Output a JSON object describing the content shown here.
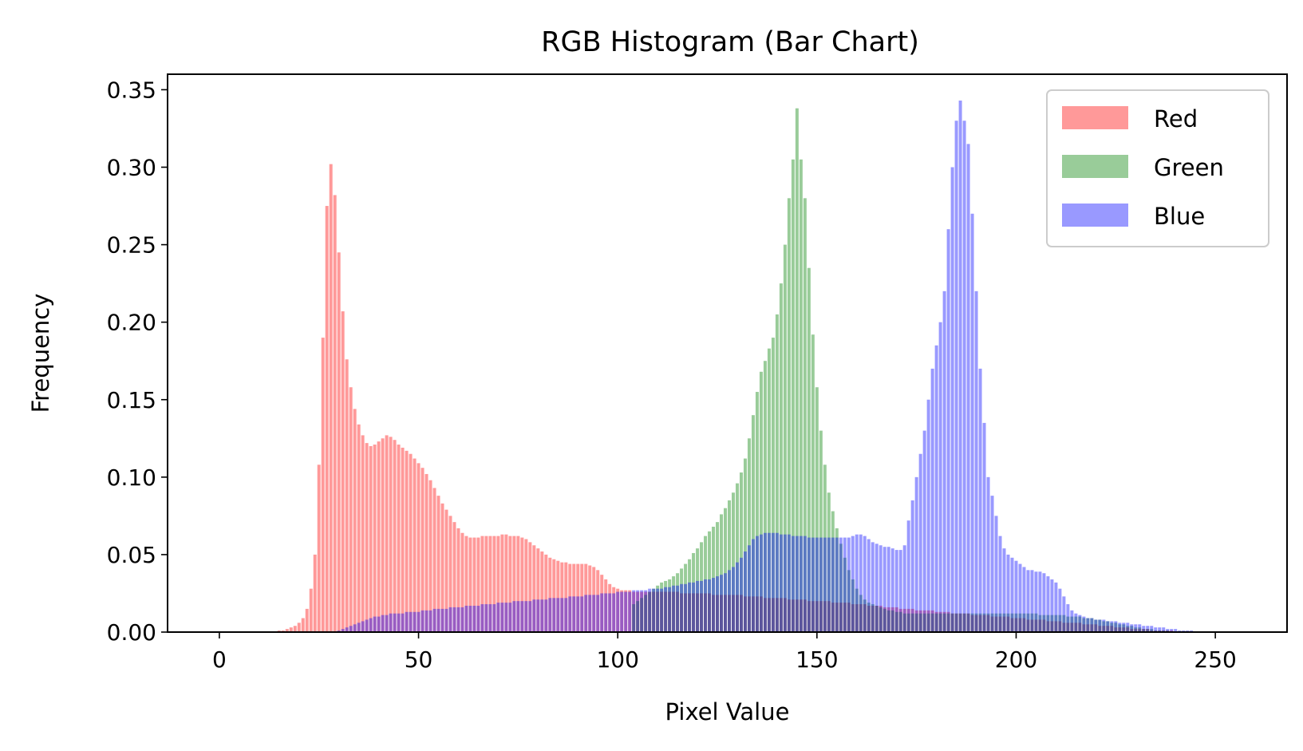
{
  "chart_data": {
    "type": "bar",
    "title": "RGB Histogram (Bar Chart)",
    "xlabel": "Pixel Value",
    "ylabel": "Frequency",
    "xlim": [
      -13,
      268
    ],
    "ylim": [
      0,
      0.36
    ],
    "xticks": [
      0,
      50,
      100,
      150,
      200,
      250
    ],
    "xtick_labels": [
      "0",
      "50",
      "100",
      "150",
      "200",
      "250"
    ],
    "yticks": [
      0,
      0.05,
      0.1,
      0.15,
      0.2,
      0.25,
      0.3,
      0.35
    ],
    "ytick_labels": [
      "0.00",
      "0.05",
      "0.10",
      "0.15",
      "0.20",
      "0.25",
      "0.30",
      "0.35"
    ],
    "grid": false,
    "legend_position": "top-right",
    "bins": "0-255",
    "series": [
      {
        "name": "Red",
        "color": "#ff0000",
        "alpha": 0.4,
        "values": [
          0,
          0,
          0,
          0,
          0,
          0,
          0,
          0,
          0,
          0,
          0,
          0,
          0,
          0,
          0,
          0.001,
          0.001,
          0.002,
          0.003,
          0.004,
          0.006,
          0.009,
          0.015,
          0.028,
          0.05,
          0.108,
          0.19,
          0.275,
          0.302,
          0.282,
          0.245,
          0.207,
          0.176,
          0.158,
          0.144,
          0.134,
          0.127,
          0.122,
          0.12,
          0.121,
          0.123,
          0.125,
          0.127,
          0.126,
          0.124,
          0.121,
          0.119,
          0.117,
          0.115,
          0.112,
          0.109,
          0.106,
          0.102,
          0.098,
          0.093,
          0.088,
          0.083,
          0.079,
          0.075,
          0.071,
          0.067,
          0.064,
          0.062,
          0.061,
          0.061,
          0.061,
          0.062,
          0.062,
          0.062,
          0.062,
          0.062,
          0.063,
          0.063,
          0.062,
          0.062,
          0.062,
          0.061,
          0.06,
          0.058,
          0.056,
          0.054,
          0.052,
          0.05,
          0.048,
          0.047,
          0.046,
          0.045,
          0.045,
          0.044,
          0.044,
          0.044,
          0.044,
          0.044,
          0.043,
          0.042,
          0.04,
          0.037,
          0.034,
          0.031,
          0.029,
          0.028,
          0.027,
          0.027,
          0.027,
          0.026,
          0.026,
          0.026,
          0.026,
          0.026,
          0.026,
          0.026,
          0.026,
          0.026,
          0.026,
          0.026,
          0.026,
          0.025,
          0.025,
          0.025,
          0.025,
          0.025,
          0.025,
          0.025,
          0.025,
          0.024,
          0.024,
          0.024,
          0.024,
          0.024,
          0.024,
          0.024,
          0.024,
          0.023,
          0.023,
          0.023,
          0.023,
          0.023,
          0.022,
          0.022,
          0.022,
          0.022,
          0.022,
          0.022,
          0.021,
          0.021,
          0.021,
          0.021,
          0.021,
          0.02,
          0.02,
          0.02,
          0.02,
          0.02,
          0.02,
          0.019,
          0.019,
          0.019,
          0.019,
          0.019,
          0.018,
          0.018,
          0.018,
          0.018,
          0.017,
          0.017,
          0.017,
          0.017,
          0.016,
          0.016,
          0.016,
          0.016,
          0.015,
          0.015,
          0.015,
          0.015,
          0.014,
          0.014,
          0.014,
          0.014,
          0.014,
          0.013,
          0.013,
          0.013,
          0.013,
          0.012,
          0.012,
          0.012,
          0.012,
          0.012,
          0.011,
          0.011,
          0.011,
          0.011,
          0.011,
          0.01,
          0.01,
          0.01,
          0.01,
          0.01,
          0.009,
          0.009,
          0.009,
          0.009,
          0.008,
          0.008,
          0.008,
          0.008,
          0.008,
          0.007,
          0.007,
          0.007,
          0.007,
          0.006,
          0.006,
          0.006,
          0.006,
          0.006,
          0.005,
          0.005,
          0.005,
          0.005,
          0.004,
          0.004,
          0.004,
          0.004,
          0.003,
          0.003,
          0.003,
          0.003,
          0.002,
          0.002,
          0.002,
          0.002,
          0.002,
          0.001,
          0.001,
          0.001,
          0.001,
          0.001,
          0.001,
          0,
          0,
          0,
          0,
          0,
          0,
          0,
          0,
          0,
          0,
          0,
          0,
          0,
          0,
          0
        ]
      },
      {
        "name": "Green",
        "color": "#008000",
        "alpha": 0.4,
        "values": [
          0,
          0,
          0,
          0,
          0,
          0,
          0,
          0,
          0,
          0,
          0,
          0,
          0,
          0,
          0,
          0,
          0,
          0,
          0,
          0,
          0,
          0,
          0,
          0,
          0,
          0,
          0,
          0,
          0,
          0,
          0,
          0,
          0,
          0,
          0,
          0,
          0,
          0,
          0,
          0,
          0,
          0,
          0,
          0,
          0,
          0,
          0,
          0,
          0,
          0,
          0,
          0,
          0,
          0,
          0,
          0,
          0,
          0,
          0,
          0,
          0,
          0,
          0,
          0,
          0,
          0,
          0,
          0,
          0,
          0,
          0,
          0,
          0,
          0,
          0,
          0,
          0,
          0,
          0,
          0,
          0,
          0,
          0,
          0,
          0,
          0,
          0,
          0,
          0,
          0,
          0,
          0,
          0,
          0,
          0,
          0,
          0,
          0,
          0,
          0,
          0,
          0,
          0,
          0,
          0.018,
          0.02,
          0.022,
          0.024,
          0.026,
          0.028,
          0.03,
          0.032,
          0.033,
          0.034,
          0.036,
          0.038,
          0.041,
          0.044,
          0.047,
          0.051,
          0.054,
          0.058,
          0.062,
          0.065,
          0.068,
          0.071,
          0.076,
          0.08,
          0.085,
          0.09,
          0.096,
          0.103,
          0.112,
          0.125,
          0.14,
          0.155,
          0.168,
          0.175,
          0.183,
          0.19,
          0.205,
          0.225,
          0.25,
          0.28,
          0.305,
          0.338,
          0.305,
          0.28,
          0.235,
          0.192,
          0.158,
          0.13,
          0.108,
          0.09,
          0.078,
          0.067,
          0.057,
          0.048,
          0.04,
          0.034,
          0.028,
          0.024,
          0.021,
          0.019,
          0.018,
          0.017,
          0.016,
          0.015,
          0.014,
          0.014,
          0.013,
          0.013,
          0.012,
          0.012,
          0.012,
          0.012,
          0.012,
          0.012,
          0.012,
          0.012,
          0.012,
          0.012,
          0.012,
          0.012,
          0.012,
          0.012,
          0.012,
          0.012,
          0.012,
          0.012,
          0.012,
          0.012,
          0.012,
          0.012,
          0.012,
          0.012,
          0.012,
          0.012,
          0.012,
          0.012,
          0.012,
          0.012,
          0.012,
          0.012,
          0.012,
          0.012,
          0.011,
          0.011,
          0.011,
          0.011,
          0.011,
          0.011,
          0.011,
          0.01,
          0.01,
          0.01,
          0.01,
          0.009,
          0.009,
          0.009,
          0.008,
          0.008,
          0.007,
          0.007,
          0.006,
          0.006,
          0.005,
          0.005,
          0.004,
          0.004,
          0.003,
          0.003,
          0.002,
          0.002,
          0.002,
          0.001,
          0.001,
          0.001,
          0.001,
          0,
          0,
          0,
          0,
          0,
          0,
          0,
          0,
          0,
          0,
          0,
          0,
          0,
          0
        ]
      },
      {
        "name": "Blue",
        "color": "#0000ff",
        "alpha": 0.4,
        "values": [
          0,
          0,
          0,
          0,
          0,
          0,
          0,
          0,
          0,
          0,
          0,
          0,
          0,
          0,
          0,
          0,
          0,
          0,
          0,
          0,
          0,
          0,
          0,
          0,
          0,
          0,
          0,
          0,
          0,
          0,
          0.001,
          0.002,
          0.003,
          0.004,
          0.005,
          0.006,
          0.007,
          0.008,
          0.009,
          0.01,
          0.01,
          0.011,
          0.011,
          0.012,
          0.012,
          0.012,
          0.012,
          0.013,
          0.013,
          0.013,
          0.013,
          0.014,
          0.014,
          0.014,
          0.015,
          0.015,
          0.015,
          0.015,
          0.016,
          0.016,
          0.016,
          0.016,
          0.017,
          0.017,
          0.017,
          0.017,
          0.018,
          0.018,
          0.018,
          0.018,
          0.019,
          0.019,
          0.019,
          0.019,
          0.02,
          0.02,
          0.02,
          0.02,
          0.02,
          0.021,
          0.021,
          0.021,
          0.021,
          0.022,
          0.022,
          0.022,
          0.022,
          0.022,
          0.023,
          0.023,
          0.023,
          0.023,
          0.024,
          0.024,
          0.024,
          0.024,
          0.025,
          0.025,
          0.025,
          0.025,
          0.026,
          0.026,
          0.026,
          0.026,
          0.027,
          0.027,
          0.027,
          0.027,
          0.028,
          0.028,
          0.028,
          0.028,
          0.029,
          0.029,
          0.03,
          0.03,
          0.031,
          0.031,
          0.032,
          0.032,
          0.033,
          0.033,
          0.034,
          0.034,
          0.035,
          0.036,
          0.037,
          0.038,
          0.04,
          0.042,
          0.045,
          0.048,
          0.052,
          0.056,
          0.06,
          0.062,
          0.063,
          0.064,
          0.064,
          0.064,
          0.064,
          0.063,
          0.063,
          0.063,
          0.062,
          0.062,
          0.062,
          0.062,
          0.061,
          0.061,
          0.061,
          0.061,
          0.061,
          0.061,
          0.061,
          0.061,
          0.061,
          0.061,
          0.061,
          0.062,
          0.063,
          0.063,
          0.062,
          0.06,
          0.058,
          0.057,
          0.056,
          0.055,
          0.055,
          0.054,
          0.053,
          0.053,
          0.056,
          0.072,
          0.085,
          0.1,
          0.115,
          0.13,
          0.15,
          0.17,
          0.185,
          0.2,
          0.22,
          0.26,
          0.3,
          0.33,
          0.343,
          0.33,
          0.315,
          0.27,
          0.22,
          0.17,
          0.135,
          0.1,
          0.088,
          0.075,
          0.062,
          0.054,
          0.05,
          0.048,
          0.046,
          0.044,
          0.042,
          0.04,
          0.04,
          0.039,
          0.039,
          0.038,
          0.036,
          0.034,
          0.032,
          0.028,
          0.023,
          0.018,
          0.014,
          0.012,
          0.011,
          0.01,
          0.009,
          0.009,
          0.008,
          0.008,
          0.008,
          0.007,
          0.007,
          0.007,
          0.006,
          0.006,
          0.006,
          0.005,
          0.005,
          0.005,
          0.004,
          0.004,
          0.004,
          0.003,
          0.003,
          0.003,
          0.002,
          0.002,
          0.002,
          0.001,
          0.001,
          0.001,
          0.001,
          0,
          0,
          0,
          0,
          0,
          0,
          0,
          0,
          0,
          0,
          0,
          0,
          0,
          0
        ]
      }
    ]
  }
}
